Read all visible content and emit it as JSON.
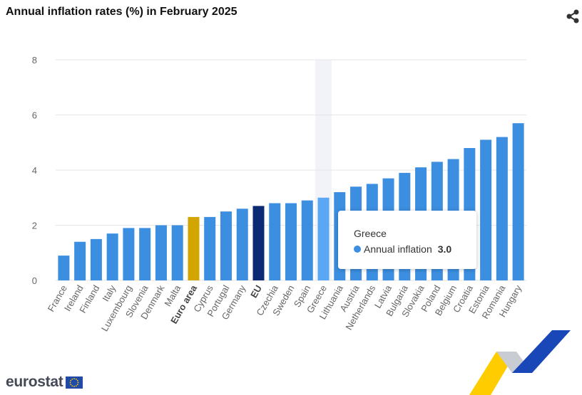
{
  "header": {
    "title": "Annual inflation rates (%) in February 2025",
    "share_icon": "share-icon"
  },
  "colors": {
    "bar_default": "#3c8ee0",
    "bar_highlight_hover": "#5aa8f5",
    "bar_euro_area": "#d2a500",
    "bar_eu": "#0b2a73",
    "grid": "#e6e6e6",
    "hover_band": "#f1f3f9"
  },
  "chart_data": {
    "type": "bar",
    "title": "Annual inflation rates (%) in February 2025",
    "xlabel": "",
    "ylabel": "",
    "ylim": [
      0,
      8
    ],
    "yticks": [
      0,
      2,
      4,
      6,
      8
    ],
    "grid": true,
    "categories": [
      "France",
      "Ireland",
      "Finland",
      "Italy",
      "Luxembourg",
      "Slovenia",
      "Denmark",
      "Malta",
      "Euro area",
      "Cyprus",
      "Portugal",
      "Germany",
      "EU",
      "Czechia",
      "Sweden",
      "Spain",
      "Greece",
      "Lithuania",
      "Austria",
      "Netherlands",
      "Latvia",
      "Bulgaria",
      "Slovakia",
      "Poland",
      "Belgium",
      "Croatia",
      "Estonia",
      "Romania",
      "Hungary"
    ],
    "series": [
      {
        "name": "Annual inflation",
        "values": [
          0.9,
          1.4,
          1.5,
          1.7,
          1.9,
          1.9,
          2.0,
          2.0,
          2.3,
          2.3,
          2.5,
          2.6,
          2.7,
          2.8,
          2.8,
          2.9,
          3.0,
          3.2,
          3.4,
          3.5,
          3.7,
          3.9,
          4.1,
          4.3,
          4.4,
          4.8,
          5.1,
          5.2,
          5.7
        ]
      }
    ],
    "bold_categories": [
      "Euro area",
      "EU"
    ],
    "hovered_category": "Greece"
  },
  "tooltip": {
    "title": "Greece",
    "series_name": "Annual inflation",
    "value": "3.0"
  },
  "footer": {
    "logo_text": "eurostat"
  }
}
